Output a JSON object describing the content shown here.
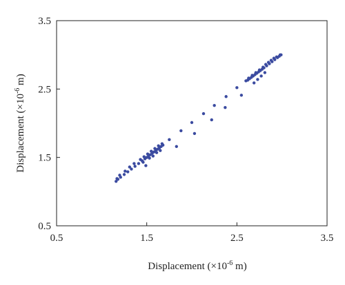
{
  "chart_data": {
    "type": "scatter",
    "title": "",
    "xlabel": "Displacement (×10⁻⁶ m)",
    "ylabel": "Displacement (×10⁻⁶ m)",
    "xlabel_parts": [
      "Displacement (×10",
      "-6",
      " m)"
    ],
    "ylabel_parts": [
      "Displacement (×10",
      "-6",
      " m)"
    ],
    "xlim": [
      0.5,
      3.5
    ],
    "ylim": [
      0.5,
      3.5
    ],
    "xticks": [
      "0.5",
      "1.5",
      "2.5",
      "3.5"
    ],
    "yticks": [
      "0.5",
      "1.5",
      "2.5",
      "3.5"
    ],
    "grid": false,
    "marker_color": "#3b4ba0",
    "series": [
      {
        "x": [
          1.16,
          1.18,
          1.21,
          1.25,
          1.29,
          1.33,
          1.37,
          1.41,
          1.45,
          1.48,
          1.5,
          1.52,
          1.54,
          1.56,
          1.58,
          1.6,
          1.62,
          1.64,
          1.66,
          1.68,
          1.17,
          1.2,
          1.26,
          1.31,
          1.36,
          1.43,
          1.47,
          1.51,
          1.55,
          1.59,
          1.63,
          1.67,
          1.46,
          1.53,
          1.61,
          1.57,
          1.65,
          1.49,
          1.75,
          1.88,
          2.0,
          2.13,
          2.25,
          2.38,
          2.5,
          1.83,
          2.03,
          2.22,
          2.37,
          2.55,
          2.62,
          2.64,
          2.66,
          2.68,
          2.7,
          2.72,
          2.74,
          2.76,
          2.78,
          2.8,
          2.83,
          2.86,
          2.89,
          2.92,
          2.95,
          2.97,
          2.99,
          2.63,
          2.67,
          2.71,
          2.75,
          2.79,
          2.82,
          2.85,
          2.88,
          2.91,
          2.94,
          2.98,
          2.6,
          2.69,
          2.77,
          2.73,
          2.81
        ],
        "y": [
          1.15,
          1.18,
          1.21,
          1.25,
          1.29,
          1.33,
          1.37,
          1.41,
          1.45,
          1.48,
          1.5,
          1.52,
          1.54,
          1.56,
          1.58,
          1.6,
          1.62,
          1.64,
          1.66,
          1.68,
          1.19,
          1.24,
          1.3,
          1.36,
          1.41,
          1.47,
          1.51,
          1.55,
          1.59,
          1.63,
          1.67,
          1.7,
          1.43,
          1.49,
          1.57,
          1.52,
          1.6,
          1.38,
          1.76,
          1.89,
          2.01,
          2.14,
          2.26,
          2.39,
          2.52,
          1.66,
          1.85,
          2.05,
          2.23,
          2.41,
          2.63,
          2.65,
          2.67,
          2.69,
          2.71,
          2.73,
          2.75,
          2.77,
          2.79,
          2.81,
          2.84,
          2.87,
          2.9,
          2.93,
          2.96,
          2.98,
          3.0,
          2.66,
          2.7,
          2.74,
          2.78,
          2.82,
          2.86,
          2.89,
          2.92,
          2.95,
          2.97,
          3.0,
          2.62,
          2.59,
          2.69,
          2.64,
          2.74
        ]
      }
    ]
  }
}
